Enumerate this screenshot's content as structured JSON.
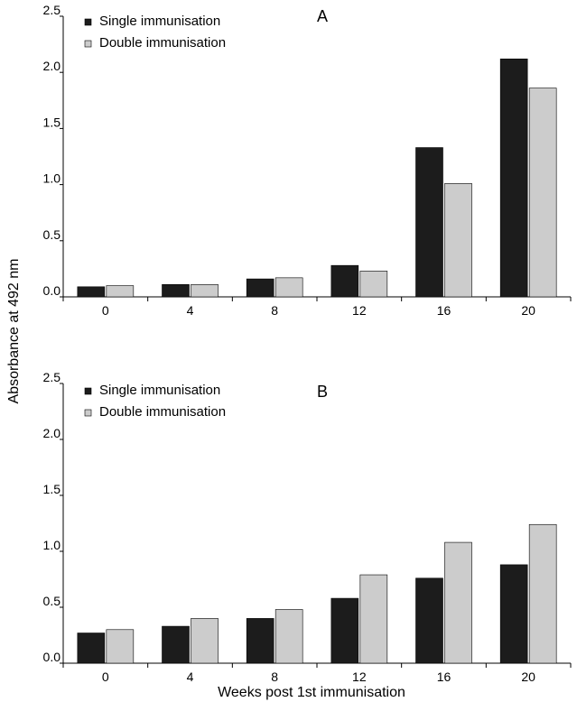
{
  "figure": {
    "ylabel": "Absorbance at 492 nm",
    "xlabel": "Weeks post 1st immunisation"
  },
  "colors": {
    "single": "#1c1c1c",
    "double": "#cccccc",
    "stroke": "#000000"
  },
  "chart_data": [
    {
      "type": "bar",
      "title": "A",
      "categories": [
        "0",
        "4",
        "8",
        "12",
        "16",
        "20"
      ],
      "series": [
        {
          "name": "Single immunisation",
          "values": [
            0.09,
            0.11,
            0.16,
            0.28,
            1.33,
            2.12
          ]
        },
        {
          "name": "Double immunisation",
          "values": [
            0.1,
            0.11,
            0.17,
            0.23,
            1.01,
            1.86
          ]
        }
      ],
      "yticks": [
        "0.0",
        "0.5",
        "1.0",
        "1.5",
        "2.0",
        "2.5"
      ],
      "ylim": [
        0,
        2.5
      ],
      "legend": "top-left",
      "grid": false
    },
    {
      "type": "bar",
      "title": "B",
      "categories": [
        "0",
        "4",
        "8",
        "12",
        "16",
        "20"
      ],
      "series": [
        {
          "name": "Single immunisation",
          "values": [
            0.27,
            0.33,
            0.4,
            0.58,
            0.76,
            0.88
          ]
        },
        {
          "name": "Double immunisation",
          "values": [
            0.3,
            0.4,
            0.48,
            0.79,
            1.08,
            1.24
          ]
        }
      ],
      "yticks": [
        "0.0",
        "0.5",
        "1.0",
        "1.5",
        "2.0",
        "2.5"
      ],
      "ylim": [
        0,
        2.5
      ],
      "legend": "top-left",
      "grid": false
    }
  ]
}
